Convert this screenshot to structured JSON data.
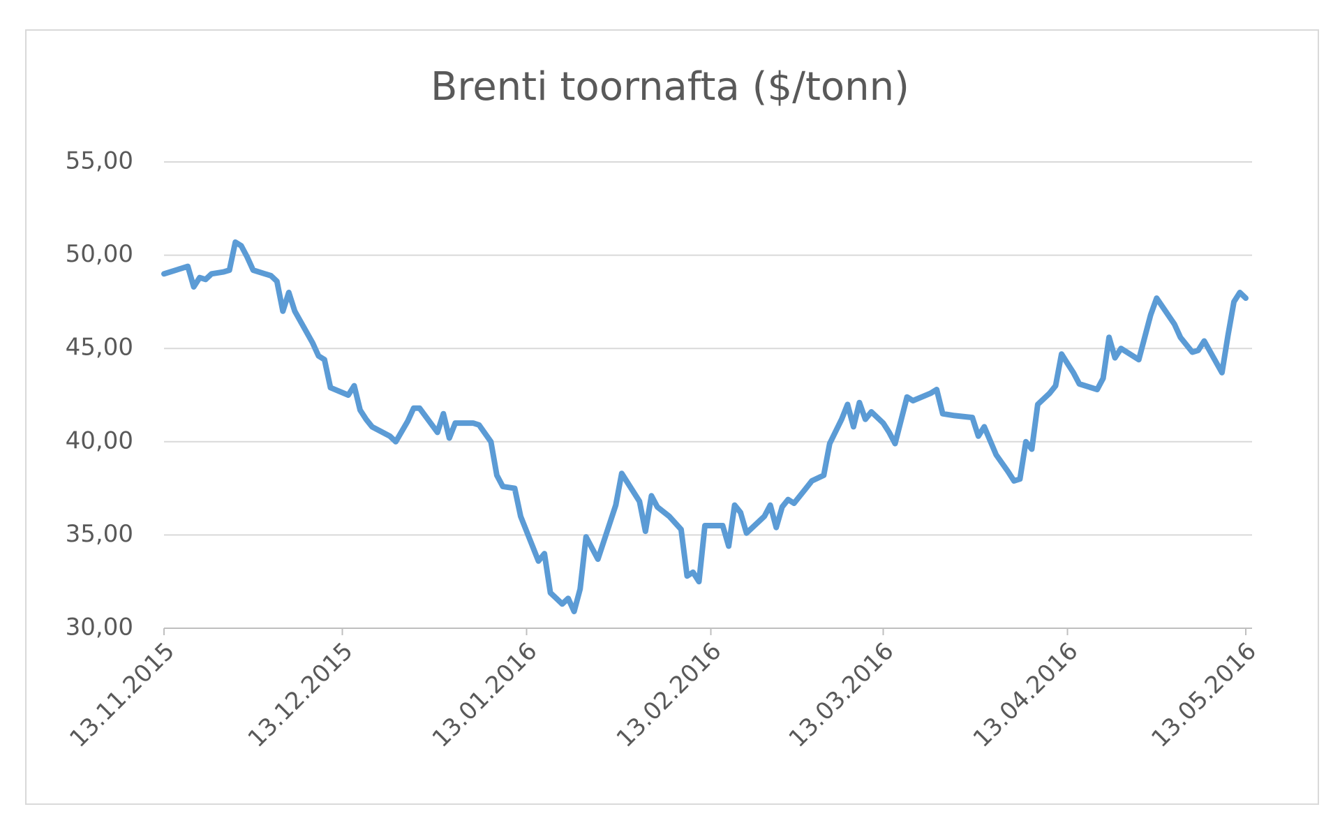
{
  "chart_data": {
    "type": "line",
    "title": "Brenti toornafta ($/tonn)",
    "x": [
      "13.11.2015",
      "16.11.2015",
      "17.11.2015",
      "18.11.2015",
      "19.11.2015",
      "20.11.2015",
      "21.11.2015",
      "23.11.2015",
      "24.11.2015",
      "25.11.2015",
      "26.11.2015",
      "27.11.2015",
      "28.11.2015",
      "01.12.2015",
      "02.12.2015",
      "03.12.2015",
      "04.12.2015",
      "05.12.2015",
      "08.12.2015",
      "09.12.2015",
      "10.12.2015",
      "11.12.2015",
      "14.12.2015",
      "15.12.2015",
      "16.12.2015",
      "17.12.2015",
      "18.12.2015",
      "21.12.2015",
      "22.12.2015",
      "24.12.2015",
      "25.12.2015",
      "26.12.2015",
      "29.12.2015",
      "30.12.2015",
      "31.12.2015",
      "01.01.2016",
      "04.01.2016",
      "05.01.2016",
      "07.01.2016",
      "08.01.2016",
      "09.01.2016",
      "11.01.2016",
      "12.01.2016",
      "14.01.2016",
      "15.01.2016",
      "16.01.2016",
      "17.01.2016",
      "18.01.2016",
      "19.01.2016",
      "20.01.2016",
      "21.01.2016",
      "22.01.2016",
      "23.01.2016",
      "25.01.2016",
      "28.01.2016",
      "29.01.2016",
      "01.02.2016",
      "02.02.2016",
      "03.02.2016",
      "04.02.2016",
      "06.02.2016",
      "08.02.2016",
      "09.02.2016",
      "10.02.2016",
      "11.02.2016",
      "12.02.2016",
      "15.02.2016",
      "16.02.2016",
      "17.02.2016",
      "18.02.2016",
      "19.02.2016",
      "22.02.2016",
      "23.02.2016",
      "24.02.2016",
      "25.02.2016",
      "26.02.2016",
      "27.02.2016",
      "29.02.2016",
      "01.03.2016",
      "03.03.2016",
      "04.03.2016",
      "06.03.2016",
      "07.03.2016",
      "08.03.2016",
      "09.03.2016",
      "10.03.2016",
      "11.03.2016",
      "13.03.2016",
      "14.03.2016",
      "15.03.2016",
      "17.03.2016",
      "18.03.2016",
      "21.03.2016",
      "22.03.2016",
      "23.03.2016",
      "25.03.2016",
      "28.03.2016",
      "29.03.2016",
      "30.03.2016",
      "01.04.2016",
      "03.04.2016",
      "04.04.2016",
      "05.04.2016",
      "06.04.2016",
      "07.04.2016",
      "08.04.2016",
      "10.04.2016",
      "11.04.2016",
      "12.04.2016",
      "13.04.2016",
      "14.04.2016",
      "15.04.2016",
      "18.04.2016",
      "19.04.2016",
      "20.04.2016",
      "21.04.2016",
      "22.04.2016",
      "25.04.2016",
      "26.04.2016",
      "27.04.2016",
      "28.04.2016",
      "01.05.2016",
      "02.05.2016",
      "04.05.2016",
      "05.05.2016",
      "06.05.2016",
      "09.05.2016",
      "10.05.2016",
      "11.05.2016",
      "12.05.2016",
      "13.05.2016"
    ],
    "values": [
      49.0,
      49.3,
      49.4,
      48.3,
      48.8,
      48.7,
      49.0,
      49.1,
      49.2,
      50.7,
      50.5,
      49.9,
      49.2,
      48.9,
      48.6,
      47.0,
      48.0,
      47.0,
      45.3,
      44.6,
      44.4,
      42.9,
      42.5,
      43.0,
      41.7,
      41.2,
      40.8,
      40.3,
      40.0,
      41.1,
      41.8,
      41.8,
      40.5,
      41.5,
      40.2,
      41.0,
      41.0,
      40.9,
      40.0,
      38.2,
      37.6,
      37.5,
      36.0,
      34.4,
      33.6,
      34.0,
      31.9,
      31.6,
      31.3,
      31.6,
      30.9,
      32.1,
      34.9,
      33.7,
      36.6,
      38.3,
      36.8,
      35.2,
      37.1,
      36.5,
      36.0,
      35.3,
      32.8,
      33.0,
      32.5,
      35.5,
      35.5,
      34.4,
      36.6,
      36.2,
      35.1,
      36.0,
      36.6,
      35.4,
      36.5,
      36.9,
      36.7,
      37.5,
      37.9,
      38.2,
      39.9,
      41.2,
      42.0,
      40.8,
      42.1,
      41.2,
      41.6,
      41.0,
      40.5,
      39.9,
      42.4,
      42.2,
      42.6,
      42.8,
      41.5,
      41.4,
      41.3,
      40.3,
      40.8,
      39.3,
      38.4,
      37.9,
      38.0,
      40.0,
      39.6,
      42.0,
      42.6,
      43.0,
      44.7,
      44.2,
      43.7,
      43.1,
      42.8,
      43.4,
      45.6,
      44.5,
      45.0,
      44.4,
      45.6,
      46.8,
      47.7,
      46.3,
      45.6,
      44.8,
      44.9,
      45.4,
      43.7,
      45.7,
      47.5,
      48.0,
      47.7
    ],
    "color": "#5b9bd5",
    "xlim": [
      "13.11.2015",
      "13.05.2016"
    ],
    "xticks": [
      "13.11.2015",
      "13.12.2015",
      "13.01.2016",
      "13.02.2016",
      "13.03.2016",
      "13.04.2016",
      "13.05.2016"
    ],
    "ylim": [
      30,
      55
    ],
    "yticks": [
      {
        "value": 30,
        "label": "30,00"
      },
      {
        "value": 35,
        "label": "35,00"
      },
      {
        "value": 40,
        "label": "40,00"
      },
      {
        "value": 45,
        "label": "45,00"
      },
      {
        "value": 50,
        "label": "50,00"
      },
      {
        "value": 55,
        "label": "55,00"
      }
    ],
    "grid": true
  }
}
